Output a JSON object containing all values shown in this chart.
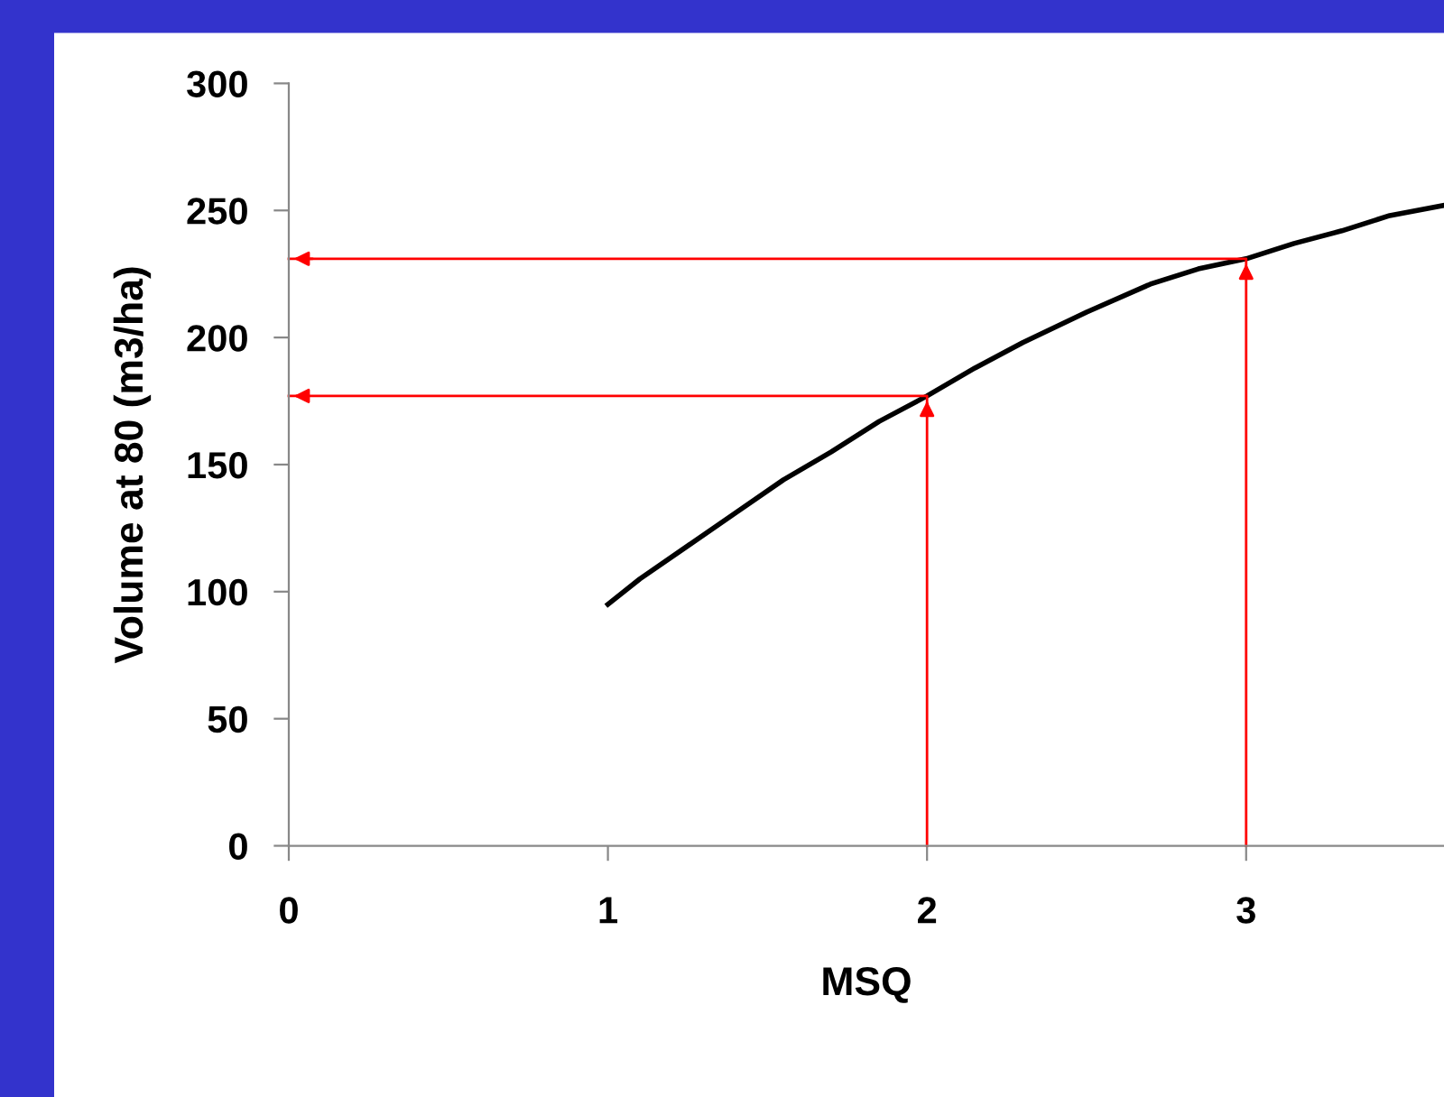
{
  "chart_data": {
    "type": "line",
    "xlabel": "MSQ",
    "ylabel": "Volume at 80 (m3/ha)",
    "xlim": [
      0,
      3.62
    ],
    "xticks": [
      0,
      1,
      2,
      3
    ],
    "ylim": [
      0,
      300
    ],
    "yticks": [
      0,
      50,
      100,
      150,
      200,
      250,
      300
    ],
    "grid": false,
    "legend": false,
    "marker": "none",
    "line_style": "solid",
    "series": [
      {
        "color": "#000000",
        "x": [
          1,
          1.1,
          1.25,
          1.4,
          1.55,
          1.7,
          1.85,
          2,
          2.15,
          2.3,
          2.5,
          2.7,
          2.85,
          3,
          3.15,
          3.3,
          3.45,
          3.62
        ],
        "values": [
          95,
          105,
          118,
          131,
          144,
          155,
          167,
          177,
          188,
          198,
          210,
          221,
          227,
          231,
          237,
          242,
          248,
          252
        ]
      },
      {
        "color": "#ff0000",
        "x": [
          2,
          2,
          0
        ],
        "values": [
          0,
          177,
          177
        ]
      },
      {
        "color": "#ff0000",
        "x": [
          3,
          3,
          0
        ],
        "values": [
          0,
          231,
          231
        ]
      }
    ]
  }
}
